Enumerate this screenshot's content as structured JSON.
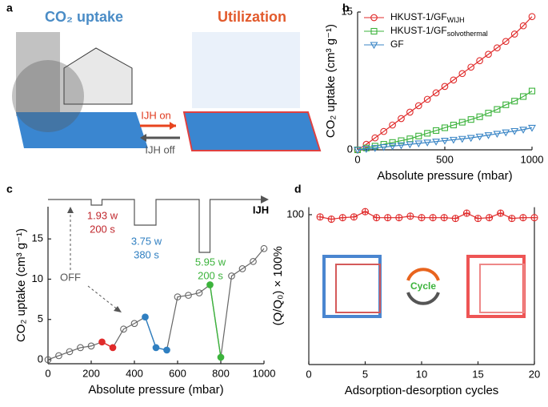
{
  "illustration": {
    "label": "a",
    "left_title": "CO₂ uptake",
    "right_title": "Utilization",
    "arrow_on": "IJH on",
    "arrow_off": "IJH off"
  },
  "chart_data": [
    {
      "type": "line",
      "label": "b",
      "xlabel": "Absolute pressure (mbar)",
      "ylabel": "CO₂ uptake (cm³ g⁻¹)",
      "xlim": [
        0,
        1000
      ],
      "xticks": [
        0,
        500,
        1000
      ],
      "ylim": [
        0,
        15
      ],
      "yticks": [
        0,
        15
      ],
      "x": [
        0,
        50,
        100,
        150,
        200,
        250,
        300,
        350,
        400,
        450,
        500,
        550,
        600,
        650,
        700,
        750,
        800,
        850,
        900,
        950,
        1000
      ],
      "series": [
        {
          "name": "HKUST-1/GF",
          "subscript": "WIJH",
          "color": "#e02b2b",
          "marker": "circle",
          "values": [
            0,
            0.6,
            1.3,
            2.0,
            2.7,
            3.4,
            4.1,
            4.8,
            5.5,
            6.2,
            6.9,
            7.6,
            8.3,
            9.0,
            9.7,
            10.4,
            11.1,
            11.8,
            12.6,
            13.5,
            14.5
          ]
        },
        {
          "name": "HKUST-1/GF",
          "subscript": "solvothermal",
          "color": "#3cb33c",
          "marker": "square",
          "values": [
            0,
            0.2,
            0.4,
            0.6,
            0.8,
            1.0,
            1.2,
            1.5,
            1.8,
            2.1,
            2.4,
            2.7,
            3.0,
            3.3,
            3.6,
            4.0,
            4.4,
            4.9,
            5.3,
            5.8,
            6.4
          ]
        },
        {
          "name": "GF",
          "color": "#3b86c6",
          "marker": "triangle",
          "values": [
            0,
            0.1,
            0.2,
            0.3,
            0.4,
            0.5,
            0.6,
            0.7,
            0.8,
            0.9,
            1.0,
            1.1,
            1.2,
            1.3,
            1.45,
            1.6,
            1.75,
            1.9,
            2.05,
            2.2,
            2.4
          ]
        }
      ]
    },
    {
      "type": "line",
      "label": "c",
      "xlabel": "Absolute pressure (mbar)",
      "ylabel": "CO₂ uptake (cm³ g⁻¹)",
      "xlim": [
        0,
        1000
      ],
      "xticks": [
        0,
        200,
        400,
        600,
        800,
        1000
      ],
      "ylim": [
        -0.5,
        19
      ],
      "yticks": [
        0,
        5,
        10,
        15
      ],
      "x": [
        0,
        50,
        100,
        150,
        200,
        250,
        300,
        350,
        400,
        450,
        500,
        550,
        600,
        650,
        700,
        750,
        800,
        850,
        900,
        950,
        1000
      ],
      "series": [
        {
          "color": "#666666",
          "marker": "circle",
          "values": [
            0,
            0.5,
            1.0,
            1.5,
            1.7,
            2.2,
            1.5,
            3.8,
            4.5,
            5.3,
            1.5,
            1.2,
            7.8,
            8.0,
            8.3,
            9.3,
            0.3,
            10.4,
            11.3,
            12.2,
            13.8
          ],
          "point_colors": [
            "#666666",
            "#666666",
            "#666666",
            "#666666",
            "#666666",
            "#e02b2b",
            "#e02b2b",
            "#666666",
            "#666666",
            "#2f7fc1",
            "#2f7fc1",
            "#2f7fc1",
            "#666666",
            "#666666",
            "#666666",
            "#3cb33c",
            "#3cb33c",
            "#666666",
            "#666666",
            "#666666",
            "#666666"
          ]
        }
      ],
      "trace_label": "IJH",
      "off_label": "OFF",
      "pulses": [
        {
          "power": "1.93 w",
          "time": "200 s",
          "color": "#c0272d"
        },
        {
          "power": "3.75 w",
          "time": "380 s",
          "color": "#2f7fc1"
        },
        {
          "power": "5.95 w",
          "time": "200 s",
          "color": "#3cb33c"
        }
      ]
    },
    {
      "type": "line",
      "label": "d",
      "xlabel": "Adsorption-desorption cycles",
      "ylabel": "(Q/Q₀) × 100%",
      "xlim": [
        0,
        20
      ],
      "xticks": [
        0,
        5,
        10,
        15,
        20
      ],
      "ylim": [
        0,
        105
      ],
      "yticks": [
        100
      ],
      "x": [
        1,
        2,
        3,
        4,
        5,
        6,
        7,
        8,
        9,
        10,
        11,
        12,
        13,
        14,
        15,
        16,
        17,
        18,
        19,
        20
      ],
      "series": [
        {
          "color": "#e02b2b",
          "marker": "crosscircle",
          "values": [
            98.5,
            97,
            98,
            98.5,
            102,
            98,
            98,
            98,
            99,
            98,
            98,
            98,
            97.5,
            101,
            97.5,
            98,
            101,
            97.5,
            98,
            98
          ]
        }
      ],
      "legend_text": "Cycle"
    }
  ]
}
